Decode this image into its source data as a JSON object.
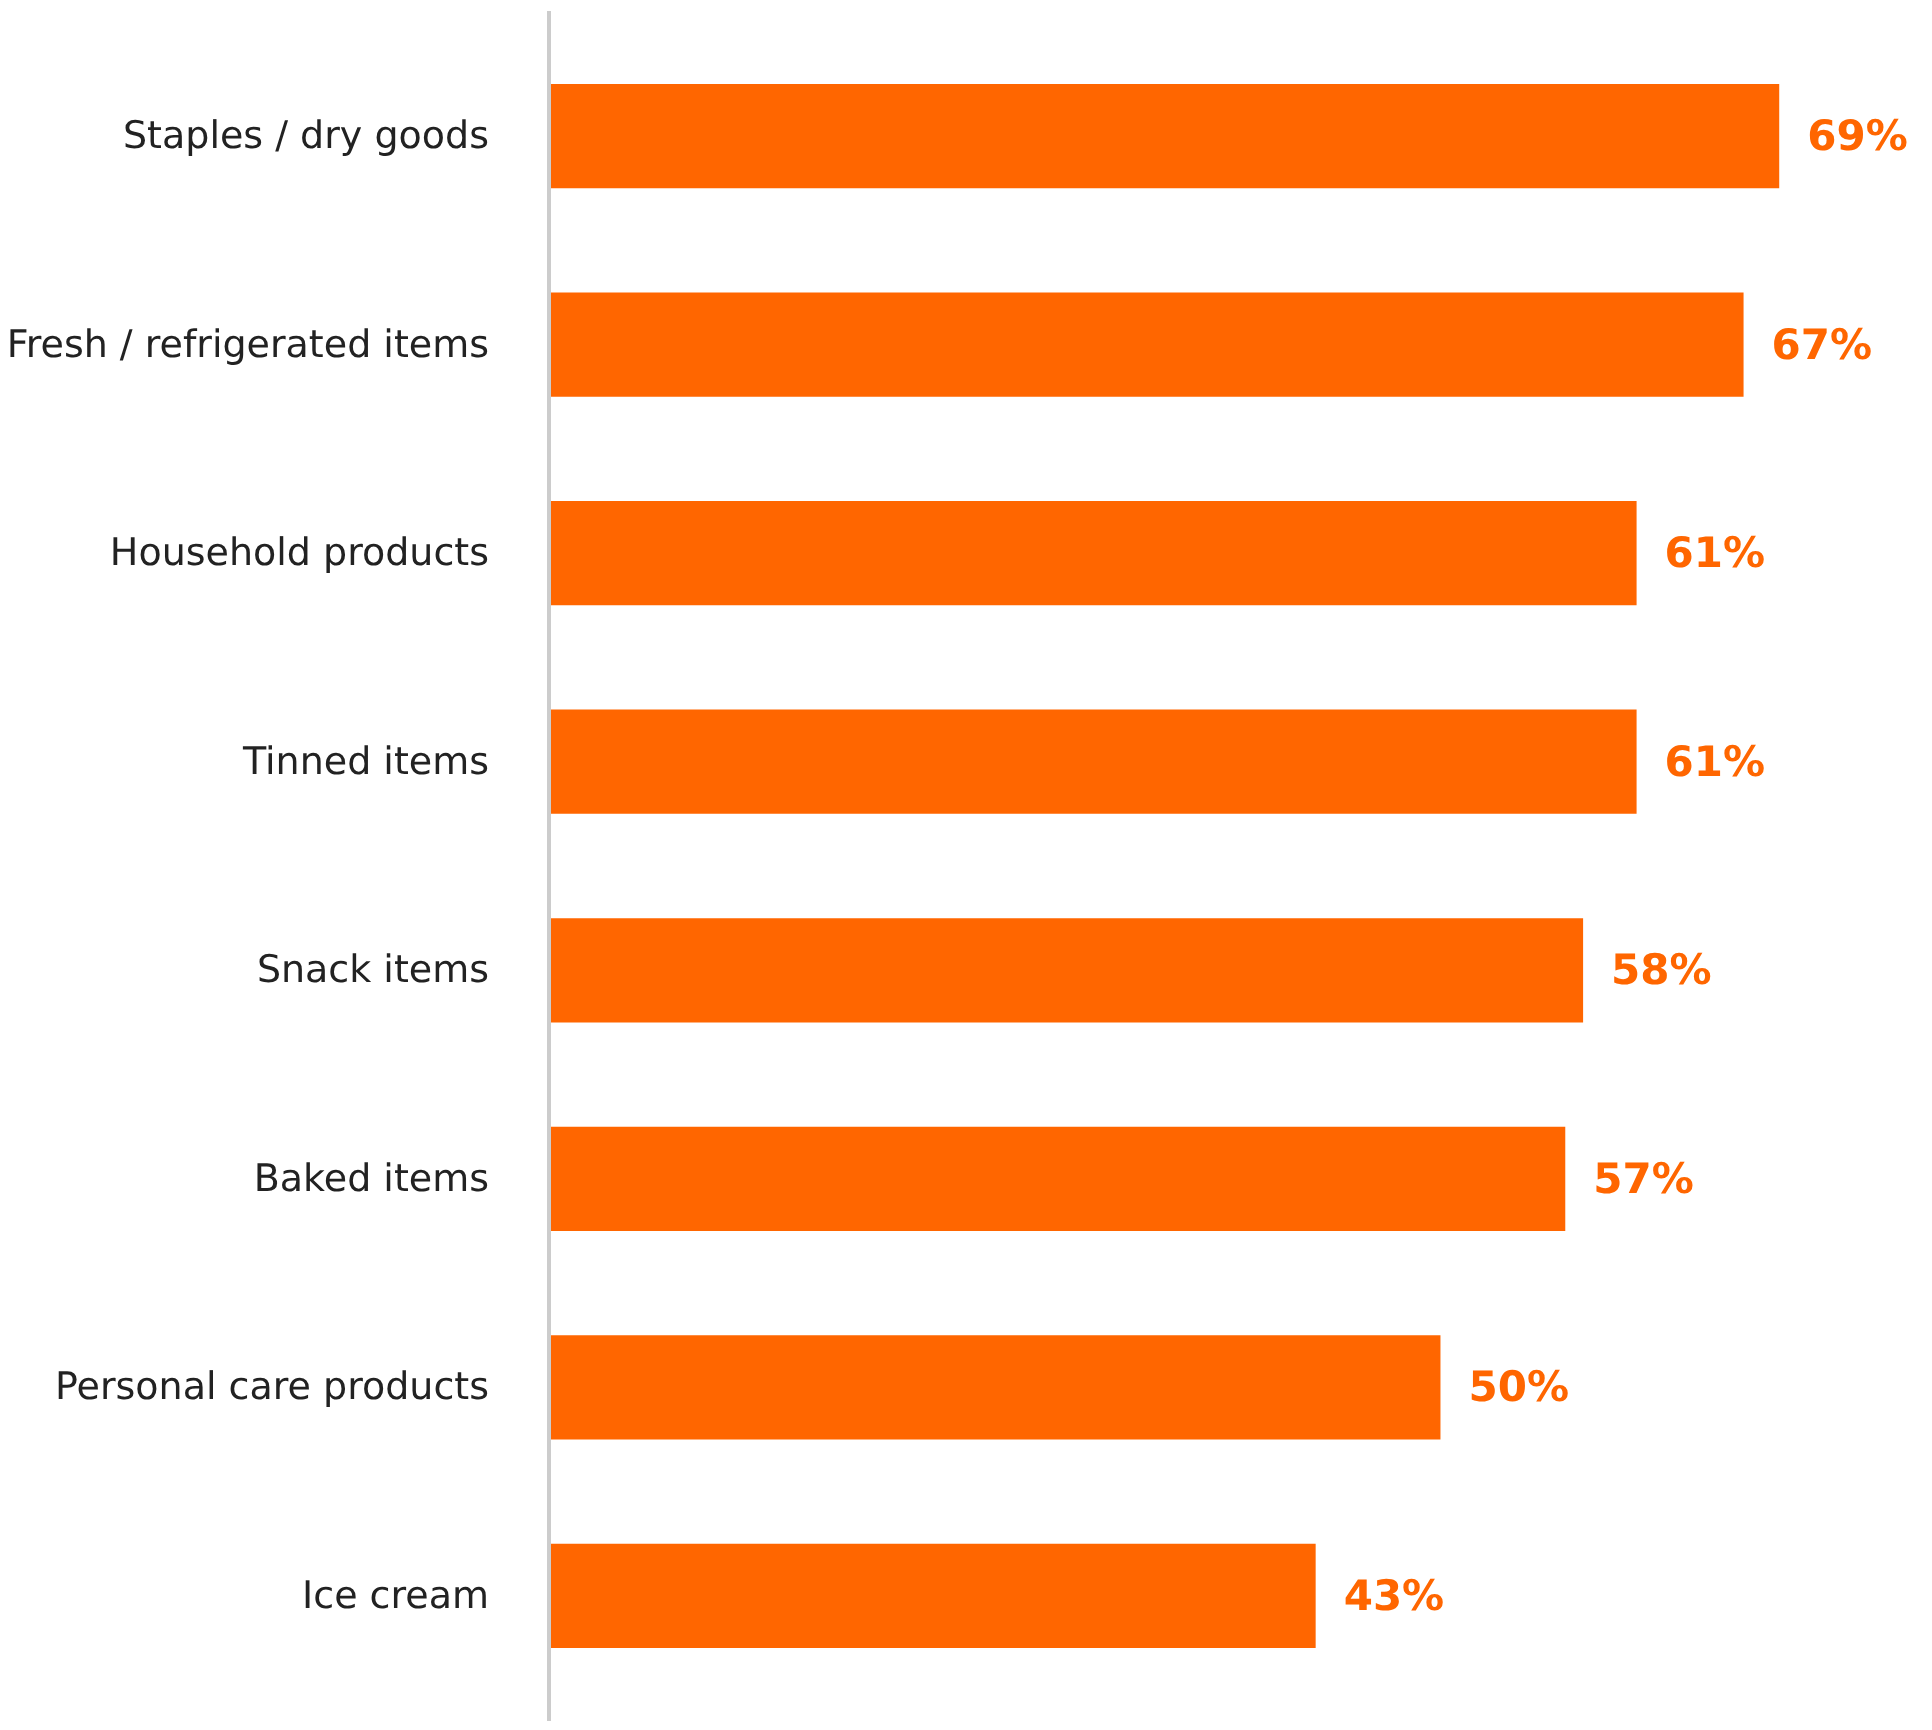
{
  "chart_data": {
    "type": "bar",
    "orientation": "horizontal",
    "categories": [
      "Staples / dry goods",
      "Fresh / refrigerated items",
      "Household products",
      "Tinned items",
      "Snack items",
      "Baked items",
      "Personal care products",
      "Ice cream"
    ],
    "values": [
      69,
      67,
      61,
      61,
      58,
      57,
      50,
      43
    ],
    "value_labels": [
      "69%",
      "67%",
      "61%",
      "61%",
      "58%",
      "57%",
      "50%",
      "43%"
    ],
    "color": "#ff6600",
    "grid": false
  }
}
